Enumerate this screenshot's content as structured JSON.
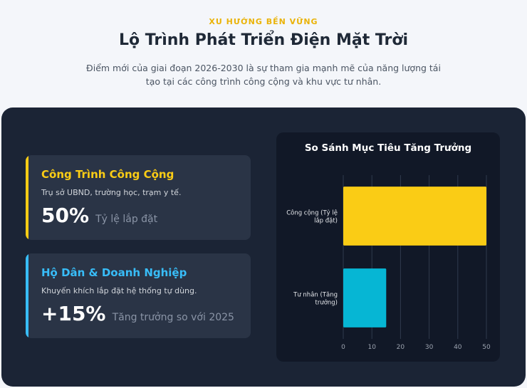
{
  "header": {
    "eyebrow": "XU HƯỚNG BỀN VỮNG",
    "title": "Lộ Trình Phát Triển Điện Mặt Trời",
    "subtitle": "Điểm mới của giai đoạn 2026-2030 là sự tham gia mạnh mẽ của năng lượng tái tạo tại các công trình công cộng và khu vực tư nhân."
  },
  "cards": [
    {
      "title": "Công Trình Công Cộng",
      "description": "Trụ sở UBND, trường học, trạm y tế.",
      "stat_value": "50%",
      "stat_label": "Tỷ lệ lắp đặt",
      "accent": "#facc15"
    },
    {
      "title": "Hộ Dân & Doanh Nghiệp",
      "description": "Khuyến khích lắp đặt hệ thống tự dùng.",
      "stat_value": "+15%",
      "stat_label": "Tăng trưởng so với 2025",
      "accent": "#38bdf8"
    }
  ],
  "chart_data": {
    "type": "bar",
    "orientation": "horizontal",
    "title": "So Sánh Mục Tiêu Tăng Trưởng",
    "categories": [
      [
        "Công cộng (Tỷ lệ",
        "lắp đặt)"
      ],
      [
        "Tư nhân (Tăng",
        "trưởng)"
      ]
    ],
    "values": [
      50,
      15
    ],
    "colors": [
      "#facc15",
      "#06b6d4"
    ],
    "xlim": [
      0,
      50
    ],
    "xticks": [
      0,
      10,
      20,
      30,
      40,
      50
    ],
    "grid": true,
    "legend": "none"
  }
}
